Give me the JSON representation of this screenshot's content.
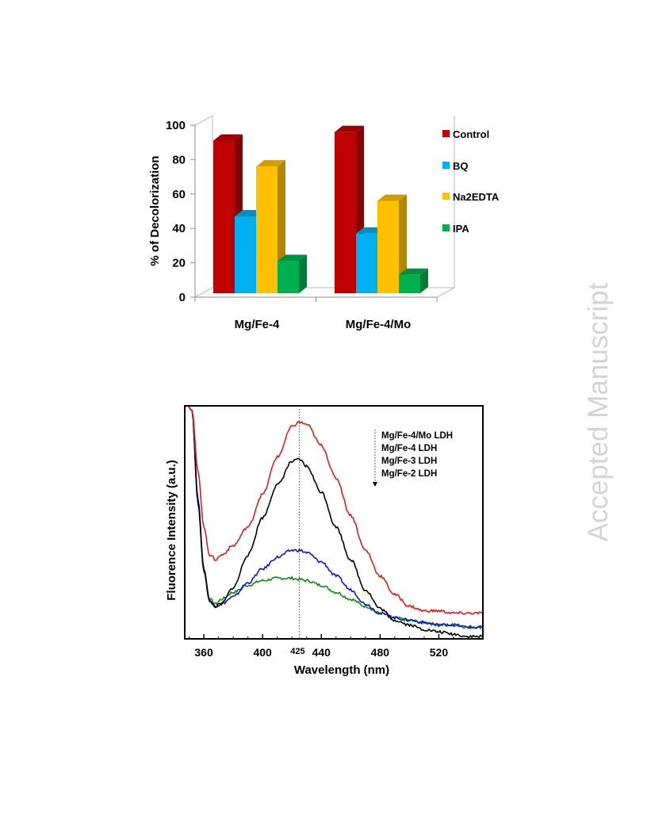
{
  "watermark": "Accepted Manuscript",
  "chart_data": [
    {
      "type": "bar",
      "title": "",
      "xlabel": "",
      "ylabel": "% of Decolorization",
      "ylim": [
        0,
        100
      ],
      "yticks": [
        0,
        20,
        40,
        60,
        80,
        100
      ],
      "categories": [
        "Mg/Fe-4",
        "Mg/Fe-4/Mo"
      ],
      "series": [
        {
          "name": "Control",
          "values": [
            91,
            96
          ],
          "color": "#c00000"
        },
        {
          "name": "BQ",
          "values": [
            47,
            37
          ],
          "color": "#00b0f0"
        },
        {
          "name": "Na2EDTA",
          "values": [
            76,
            56
          ],
          "color": "#ffc000"
        },
        {
          "name": "IPA",
          "values": [
            21,
            13
          ],
          "color": "#00b050"
        }
      ],
      "legend": "right",
      "grid": false,
      "style": "3d"
    },
    {
      "type": "line",
      "title": "",
      "xlabel": "Wavelength (nm)",
      "ylabel": "Fluorence Intensity (a.u.)",
      "xlim": [
        347,
        550
      ],
      "ylim": [
        0,
        1
      ],
      "xticks": [
        360,
        400,
        440,
        480,
        520
      ],
      "annotation": {
        "x": 425,
        "label": "425"
      },
      "legend": "top-right",
      "legend_arrow": "down",
      "series": [
        {
          "name": "Mg/Fe-4/Mo LDH",
          "color": "#dd1f1f",
          "x": [
            347,
            352,
            356,
            360,
            364,
            368,
            372,
            380,
            390,
            400,
            410,
            420,
            425,
            430,
            440,
            450,
            460,
            470,
            480,
            490,
            500,
            510,
            520,
            530,
            540,
            550
          ],
          "y": [
            1.02,
            0.98,
            0.72,
            0.48,
            0.36,
            0.34,
            0.36,
            0.4,
            0.48,
            0.62,
            0.78,
            0.91,
            0.93,
            0.92,
            0.83,
            0.69,
            0.53,
            0.38,
            0.27,
            0.19,
            0.14,
            0.12,
            0.12,
            0.11,
            0.11,
            0.11
          ]
        },
        {
          "name": "Mg/Fe-4 LDH",
          "color": "#000000",
          "x": [
            347,
            352,
            356,
            360,
            364,
            368,
            372,
            380,
            390,
            400,
            410,
            420,
            425,
            430,
            440,
            450,
            460,
            470,
            480,
            490,
            500,
            510,
            520,
            530,
            540,
            550
          ],
          "y": [
            1.02,
            0.98,
            0.6,
            0.3,
            0.16,
            0.14,
            0.15,
            0.22,
            0.36,
            0.52,
            0.66,
            0.76,
            0.77,
            0.74,
            0.63,
            0.48,
            0.34,
            0.21,
            0.13,
            0.08,
            0.06,
            0.04,
            0.03,
            0.02,
            0.01,
            0.01
          ]
        },
        {
          "name": "Mg/Fe-3 LDH",
          "color": "#1515c8",
          "x": [
            347,
            352,
            356,
            360,
            364,
            368,
            372,
            380,
            390,
            400,
            410,
            420,
            425,
            430,
            440,
            450,
            460,
            470,
            480,
            490,
            500,
            510,
            520,
            530,
            540,
            550
          ],
          "y": [
            1.02,
            0.98,
            0.58,
            0.29,
            0.16,
            0.14,
            0.15,
            0.18,
            0.24,
            0.3,
            0.35,
            0.38,
            0.38,
            0.37,
            0.33,
            0.27,
            0.21,
            0.15,
            0.11,
            0.09,
            0.08,
            0.07,
            0.06,
            0.06,
            0.05,
            0.05
          ]
        },
        {
          "name": "Mg/Fe-2 LDH",
          "color": "#168a16",
          "x": [
            347,
            352,
            356,
            360,
            364,
            368,
            372,
            380,
            390,
            400,
            410,
            420,
            425,
            430,
            440,
            450,
            460,
            470,
            480,
            490,
            500,
            510,
            520,
            530,
            540,
            550
          ],
          "y": [
            1.02,
            0.98,
            0.59,
            0.3,
            0.17,
            0.15,
            0.17,
            0.2,
            0.23,
            0.25,
            0.26,
            0.26,
            0.255,
            0.25,
            0.23,
            0.2,
            0.17,
            0.14,
            0.11,
            0.09,
            0.08,
            0.07,
            0.06,
            0.06,
            0.05,
            0.05
          ]
        }
      ]
    }
  ]
}
